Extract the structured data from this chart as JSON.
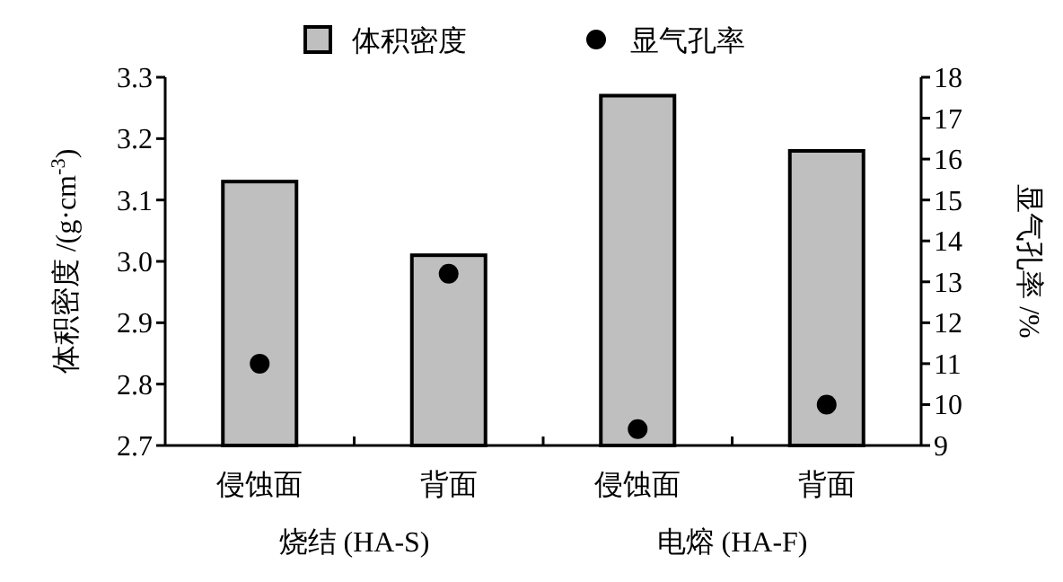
{
  "chart_data": {
    "type": "bar",
    "categories": [
      "侵蚀面",
      "背面",
      "侵蚀面",
      "背面"
    ],
    "ylabel": "体积密度 /(g·cm$^{-3}$)",
    "y2label": "显气孔率 /%",
    "ylim": [
      2.7,
      3.3
    ],
    "yticks": [
      2.7,
      2.8,
      2.9,
      {
        "value": 3,
        "label": "3.0"
      },
      3.1,
      3.2,
      3.3
    ],
    "y2lim": [
      9,
      18
    ],
    "y2ticks": [
      9,
      10,
      11,
      12,
      13,
      14,
      15,
      16,
      17,
      18
    ],
    "series": [
      {
        "name": "体积密度",
        "color": "#bfbfbf",
        "values": [
          3.13,
          3.01,
          3.27,
          3.18
        ]
      },
      {
        "name": "显气孔率",
        "type": "scatter",
        "axis": "y2",
        "marker": "circle",
        "color": "#000000",
        "values": [
          11.0,
          13.2,
          9.4,
          10.0
        ]
      }
    ],
    "legend": "top",
    "annotations": [
      "烧结 (HA-S)",
      "电熔 (HA-F)"
    ]
  }
}
